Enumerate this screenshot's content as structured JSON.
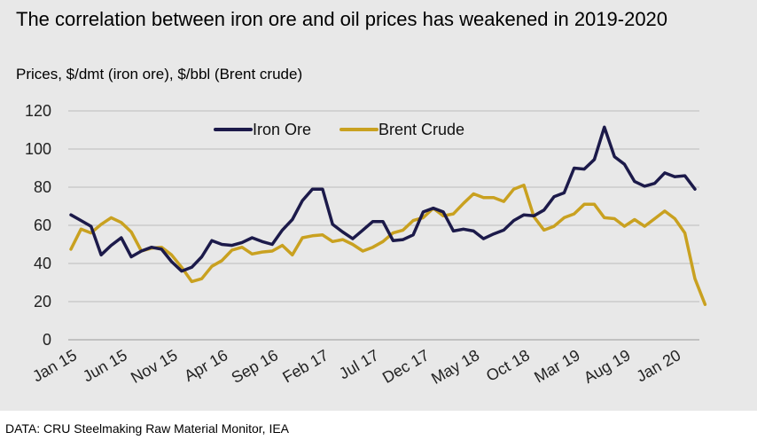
{
  "chart_data": {
    "type": "line",
    "title": "The correlation between iron ore and oil prices has weakened in 2019-2020",
    "subtitle": "Prices, $/dmt (iron ore), $/bbl (Brent crude)",
    "source": "DATA: CRU Steelmaking Raw Material Monitor, IEA",
    "xlabel": "",
    "ylabel": "",
    "ylim": [
      0,
      120
    ],
    "yticks": [
      0,
      20,
      40,
      60,
      80,
      100,
      120
    ],
    "grid": true,
    "legend": "top-center",
    "x_tick_labels": [
      {
        "index": 0,
        "label": "Jan 15"
      },
      {
        "index": 5,
        "label": "Jun 15"
      },
      {
        "index": 10,
        "label": "Nov 15"
      },
      {
        "index": 15,
        "label": "Apr 16"
      },
      {
        "index": 20,
        "label": "Sep 16"
      },
      {
        "index": 25,
        "label": "Feb 17"
      },
      {
        "index": 30,
        "label": "Jul 17"
      },
      {
        "index": 35,
        "label": "Dec 17"
      },
      {
        "index": 40,
        "label": "May 18"
      },
      {
        "index": 45,
        "label": "Oct 18"
      },
      {
        "index": 50,
        "label": "Mar 19"
      },
      {
        "index": 55,
        "label": "Aug 19"
      },
      {
        "index": 60,
        "label": "Jan 20"
      }
    ],
    "series": [
      {
        "name": "Iron Ore",
        "color": "#1c1a4a",
        "values": [
          65.5,
          62.5,
          59.5,
          44.5,
          49.5,
          53.5,
          43.5,
          46.5,
          48.5,
          47.5,
          41,
          36,
          38,
          43.5,
          52,
          50,
          49.5,
          51,
          53.5,
          51.5,
          50,
          57.5,
          63,
          73,
          79,
          79,
          60.5,
          56.5,
          53,
          57.5,
          62,
          62,
          52,
          52.5,
          55,
          67,
          69,
          67,
          57,
          58,
          57,
          53,
          55.5,
          57.5,
          62.5,
          65.5,
          65,
          68,
          75,
          77,
          90,
          89.5,
          94.5,
          111.5,
          96,
          92,
          83,
          80.5,
          82,
          87.5,
          85.5,
          86,
          79
        ]
      },
      {
        "name": "Brent Crude",
        "color": "#c9a120",
        "values": [
          47.5,
          58,
          56,
          60.5,
          64,
          61.5,
          56.5,
          46.5,
          48,
          48.5,
          44.5,
          38,
          30.5,
          32,
          38.5,
          41.5,
          47,
          48.5,
          45,
          46,
          46.5,
          49.5,
          44.5,
          53.5,
          54.5,
          55,
          51.5,
          52.5,
          50,
          46.5,
          48.5,
          51.5,
          56,
          57.5,
          62.5,
          64,
          69,
          65,
          66,
          71.5,
          76.5,
          74.5,
          74.5,
          72.5,
          79,
          81,
          64.5,
          57.5,
          59.5,
          64,
          66,
          71,
          71,
          64,
          63.5,
          59.5,
          63,
          59.5,
          63.5,
          67.5,
          63.5,
          56,
          32,
          18.5
        ]
      }
    ]
  }
}
